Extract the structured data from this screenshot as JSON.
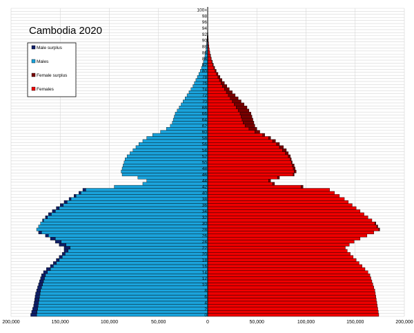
{
  "chart_data": {
    "type": "bar",
    "title": "Cambodia 2020",
    "orientation": "horizontal-population-pyramid",
    "xlim": [
      -200000,
      200000
    ],
    "x_ticks": [
      -200000,
      -150000,
      -100000,
      -50000,
      0,
      50000,
      100000,
      150000,
      200000
    ],
    "x_tick_labels": [
      "200,000",
      "150,000",
      "100,000",
      "50,000",
      "0",
      "50,000",
      "100,000",
      "150,000",
      "200,000"
    ],
    "ages": [
      0,
      1,
      2,
      3,
      4,
      5,
      6,
      7,
      8,
      9,
      10,
      11,
      12,
      13,
      14,
      15,
      16,
      17,
      18,
      19,
      20,
      21,
      22,
      23,
      24,
      25,
      26,
      27,
      28,
      29,
      30,
      31,
      32,
      33,
      34,
      35,
      36,
      37,
      38,
      39,
      40,
      41,
      42,
      43,
      44,
      45,
      46,
      47,
      48,
      49,
      50,
      51,
      52,
      53,
      54,
      55,
      56,
      57,
      58,
      59,
      60,
      61,
      62,
      63,
      64,
      65,
      66,
      67,
      68,
      69,
      70,
      71,
      72,
      73,
      74,
      75,
      76,
      77,
      78,
      79,
      80,
      81,
      82,
      83,
      84,
      85,
      86,
      87,
      88,
      89,
      90,
      91,
      92,
      93,
      94,
      95,
      96,
      97,
      98,
      99,
      100
    ],
    "age_labels": [
      "0",
      "",
      "2",
      "",
      "4",
      "",
      "6",
      "",
      "8",
      "",
      "10",
      "",
      "12",
      "",
      "14",
      "",
      "16",
      "",
      "18",
      "",
      "20",
      "",
      "22",
      "",
      "24",
      "",
      "26",
      "",
      "28",
      "",
      "30",
      "",
      "32",
      "",
      "34",
      "",
      "36",
      "",
      "38",
      "",
      "40",
      "",
      "42",
      "",
      "44",
      "",
      "46",
      "",
      "48",
      "",
      "50",
      "",
      "52",
      "",
      "54",
      "",
      "56",
      "",
      "58",
      "",
      "60",
      "",
      "62",
      "",
      "64",
      "",
      "66",
      "",
      "68",
      "",
      "70",
      "",
      "72",
      "",
      "74",
      "",
      "76",
      "",
      "78",
      "",
      "80",
      "",
      "82",
      "",
      "84",
      "",
      "86",
      "",
      "88",
      "",
      "90",
      "",
      "92",
      "",
      "94",
      "",
      "96",
      "",
      "98",
      "",
      "100+"
    ],
    "legend": [
      {
        "label": "Male surplus",
        "color": "#10206a"
      },
      {
        "label": "Males",
        "color": "#1aa3dc"
      },
      {
        "label": "Female surplus",
        "color": "#7a0000"
      },
      {
        "label": "Females",
        "color": "#ee0000"
      }
    ],
    "series": [
      {
        "name": "Males",
        "values": [
          180000,
          179000,
          178000,
          177000,
          176500,
          176000,
          175500,
          175000,
          174000,
          173000,
          172000,
          171000,
          170000,
          169000,
          167000,
          164000,
          160000,
          157000,
          154000,
          151000,
          148000,
          146000,
          146000,
          151000,
          155000,
          160000,
          165000,
          172000,
          174000,
          172000,
          170000,
          168000,
          165000,
          162000,
          158000,
          154000,
          150000,
          146000,
          141000,
          136000,
          131000,
          127000,
          95000,
          66000,
          62000,
          71000,
          87000,
          88000,
          87000,
          86000,
          85000,
          84000,
          82000,
          79000,
          76000,
          73000,
          70000,
          66000,
          62000,
          56000,
          48000,
          42000,
          38000,
          36000,
          35000,
          34000,
          33000,
          31000,
          29000,
          27000,
          25000,
          23000,
          21000,
          19000,
          17000,
          15000,
          13500,
          12000,
          10500,
          9000,
          7500,
          6300,
          5200,
          4300,
          3500,
          2800,
          2200,
          1700,
          1300,
          1000,
          700,
          500,
          350,
          250,
          150,
          100,
          60,
          40,
          20,
          10,
          5
        ]
      },
      {
        "name": "Females",
        "values": [
          174000,
          173500,
          173000,
          172500,
          172000,
          171500,
          171000,
          170500,
          170000,
          169000,
          168000,
          167000,
          166000,
          165000,
          163000,
          160000,
          157000,
          154000,
          151000,
          148000,
          145000,
          142000,
          140000,
          144000,
          149000,
          155000,
          162000,
          169000,
          175000,
          173000,
          171000,
          167000,
          163000,
          159000,
          155000,
          151000,
          147000,
          143000,
          139000,
          134000,
          129000,
          124000,
          97000,
          68000,
          64000,
          73000,
          88000,
          90000,
          89000,
          88000,
          86000,
          85000,
          84000,
          82000,
          80000,
          77000,
          73000,
          69000,
          64000,
          58000,
          53000,
          50000,
          48000,
          47000,
          46000,
          45000,
          44000,
          42000,
          40000,
          37000,
          34000,
          31000,
          28000,
          25000,
          22000,
          19500,
          17000,
          14500,
          12500,
          10500,
          8700,
          7100,
          5800,
          4700,
          3700,
          2900,
          2200,
          1700,
          1300,
          950,
          650,
          450,
          300,
          200,
          120,
          70,
          40,
          20,
          10,
          5,
          2
        ]
      }
    ],
    "grid": true
  }
}
